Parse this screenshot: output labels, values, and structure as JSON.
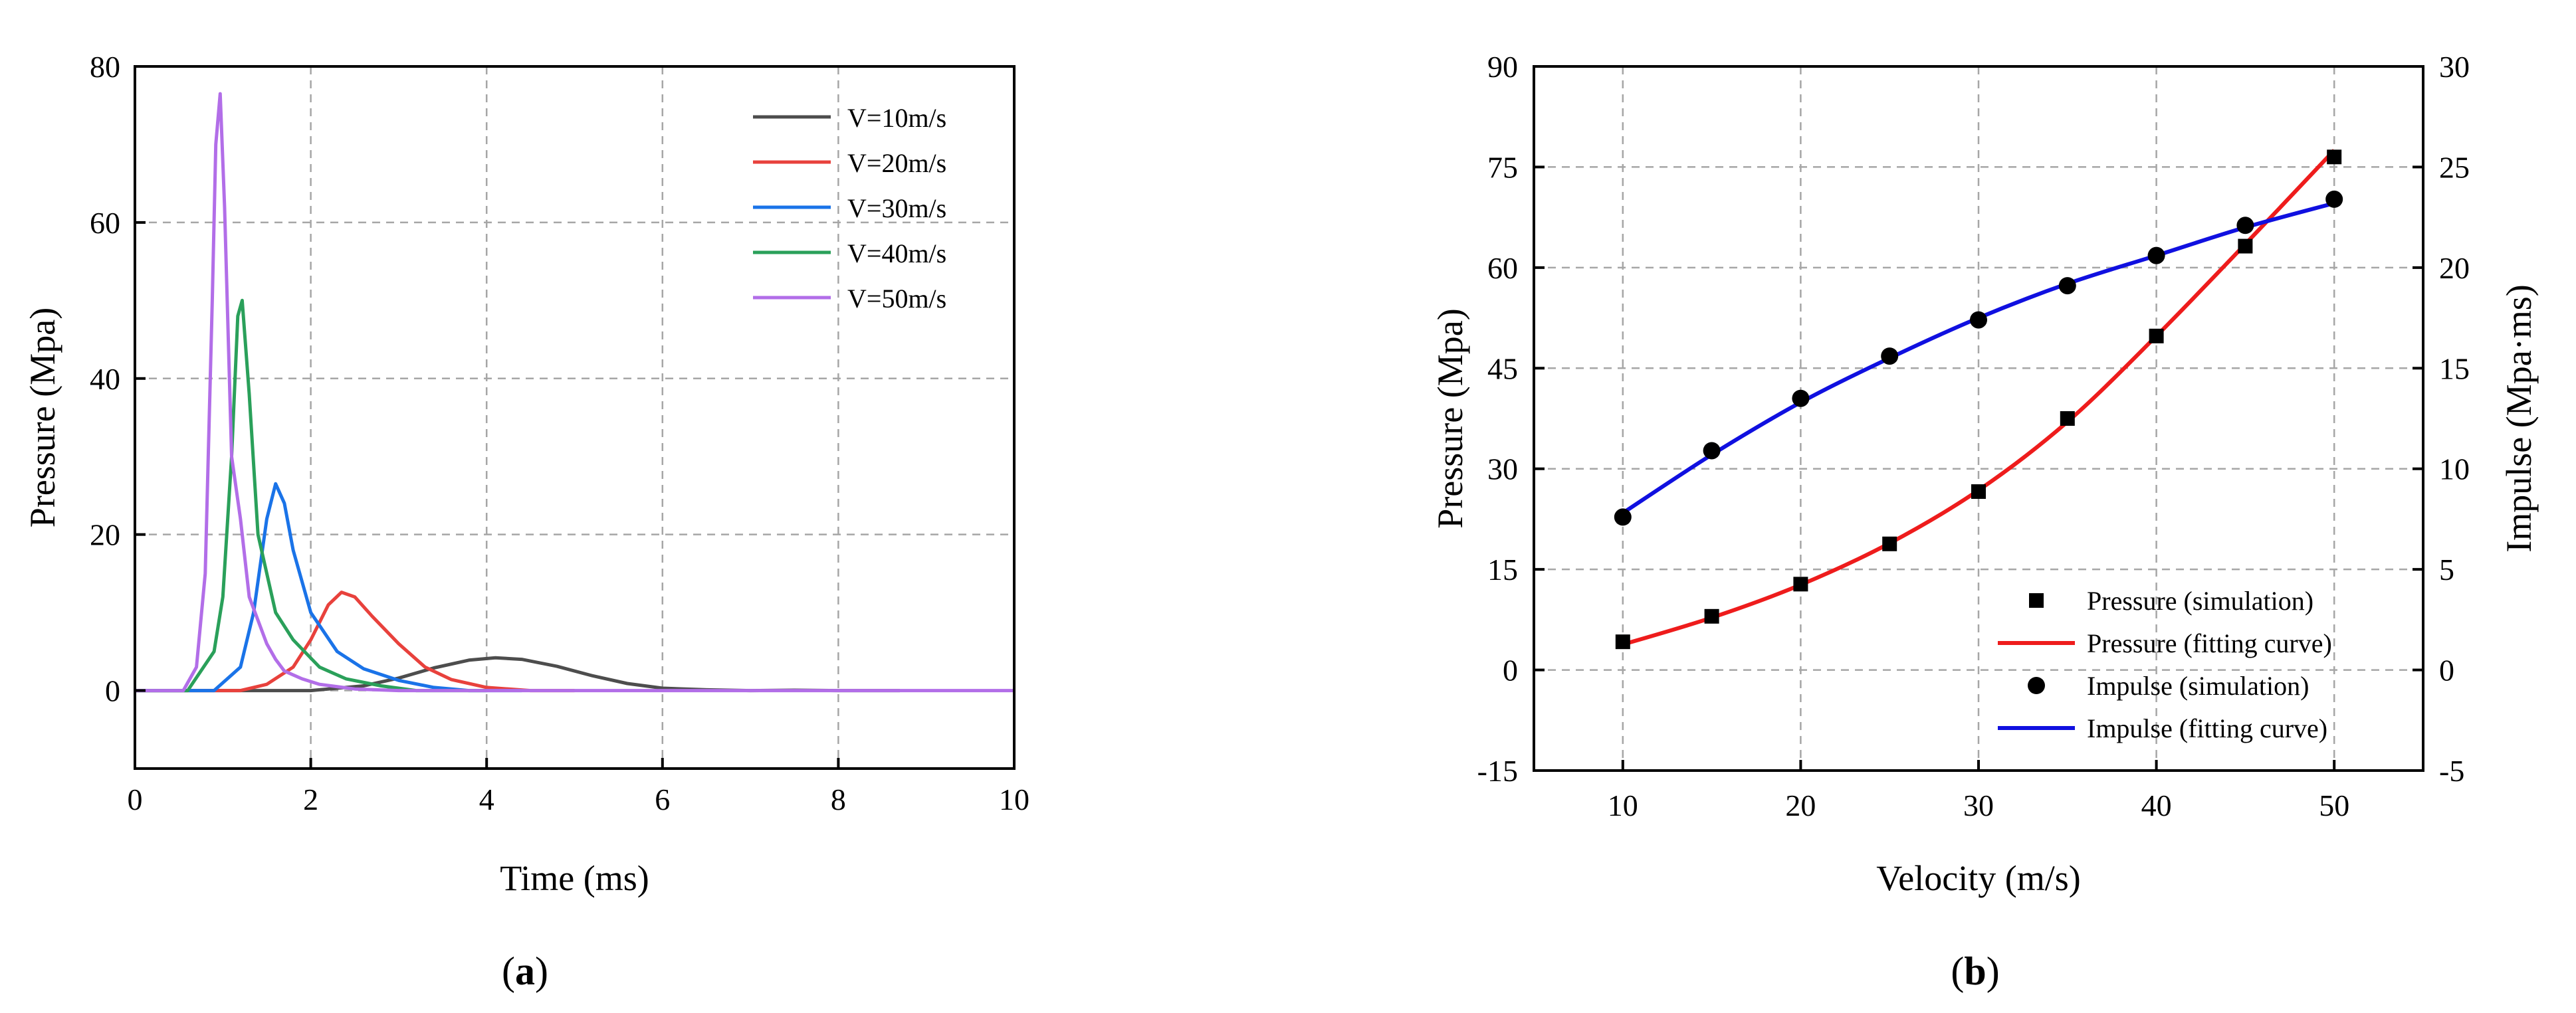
{
  "chart_data": [
    {
      "panel": "a",
      "caption_prefix": "(",
      "caption_letter": "a",
      "caption_suffix": ")",
      "type": "line",
      "xlabel": "Time (ms)",
      "ylabel": "Pressure (Mpa)",
      "xlim": [
        0,
        10
      ],
      "ylim": [
        -10,
        80
      ],
      "xticks": [
        0,
        2,
        4,
        6,
        8,
        10
      ],
      "yticks": [
        0,
        20,
        40,
        60,
        80
      ],
      "grid": true,
      "legend_position": "top-right",
      "series": [
        {
          "name": "V=10m/s",
          "color": "#4d4d4d",
          "x": [
            0,
            2.0,
            2.6,
            3.0,
            3.4,
            3.8,
            4.1,
            4.4,
            4.8,
            5.2,
            5.6,
            6.0,
            6.5,
            7.0,
            7.5,
            8.0,
            8.7
          ],
          "y": [
            0,
            0,
            0.6,
            1.6,
            2.9,
            3.9,
            4.2,
            4.0,
            3.1,
            1.9,
            0.9,
            0.3,
            0.1,
            0,
            0.05,
            0,
            0
          ]
        },
        {
          "name": "V=20m/s",
          "color": "#e8413c",
          "x": [
            0,
            1.2,
            1.5,
            1.8,
            2.0,
            2.2,
            2.35,
            2.5,
            2.7,
            3.0,
            3.3,
            3.6,
            4.0,
            4.5,
            5.0
          ],
          "y": [
            0,
            0,
            0.8,
            3.0,
            6.5,
            11.0,
            12.6,
            12.0,
            9.5,
            6.0,
            3.0,
            1.4,
            0.4,
            0,
            0
          ]
        },
        {
          "name": "V=30m/s",
          "color": "#1a73e8",
          "x": [
            0,
            0.9,
            1.2,
            1.35,
            1.5,
            1.6,
            1.7,
            1.8,
            2.0,
            2.3,
            2.6,
            3.0,
            3.4,
            3.8,
            4.4
          ],
          "y": [
            0,
            0,
            3.0,
            10.0,
            22.0,
            26.5,
            24.0,
            18.0,
            10.0,
            5.0,
            2.8,
            1.3,
            0.4,
            0,
            0
          ]
        },
        {
          "name": "V=40m/s",
          "color": "#2aa05a",
          "x": [
            0,
            0.6,
            0.9,
            1.0,
            1.1,
            1.17,
            1.22,
            1.3,
            1.4,
            1.6,
            1.8,
            2.1,
            2.4,
            2.8,
            3.2,
            4.0
          ],
          "y": [
            0,
            0,
            5.0,
            12.0,
            30.0,
            48.0,
            50.0,
            38.0,
            20.0,
            10.0,
            6.5,
            3.0,
            1.5,
            0.6,
            0,
            0
          ]
        },
        {
          "name": "V=50m/s",
          "color": "#b26ee8",
          "x": [
            0,
            0.55,
            0.7,
            0.8,
            0.88,
            0.92,
            0.97,
            1.02,
            1.1,
            1.2,
            1.3,
            1.4,
            1.5,
            1.6,
            1.7,
            1.9,
            2.1,
            2.5,
            3.0,
            10.0
          ],
          "y": [
            0,
            0,
            3.0,
            15.0,
            50.0,
            70.0,
            76.5,
            62.0,
            30.0,
            22.0,
            12.0,
            9.0,
            6.0,
            4.0,
            2.5,
            1.5,
            0.8,
            0.2,
            0,
            0
          ]
        }
      ]
    },
    {
      "panel": "b",
      "caption_prefix": "(",
      "caption_letter": "b",
      "caption_suffix": ")",
      "type": "scatter+line",
      "xlabel": "Velocity (m/s)",
      "ylabel_left": "Pressure (Mpa)",
      "ylabel_right": "Impulse (Mpa·ms)",
      "xlim": [
        5,
        55
      ],
      "ylim_left": [
        -15,
        90
      ],
      "ylim_right": [
        -5,
        30
      ],
      "xticks": [
        10,
        20,
        30,
        40,
        50
      ],
      "yticks_left": [
        -15,
        0,
        15,
        30,
        45,
        60,
        75,
        90
      ],
      "yticks_right": [
        -5,
        0,
        5,
        10,
        15,
        20,
        25,
        30
      ],
      "grid": true,
      "legend_position": "bottom-right",
      "x": [
        10,
        15,
        20,
        25,
        30,
        35,
        40,
        45,
        50
      ],
      "series": [
        {
          "name": "Pressure (simulation)",
          "marker": "square",
          "color": "#000000",
          "axis": "left",
          "y": [
            4.2,
            8.0,
            12.8,
            18.8,
            26.6,
            37.5,
            49.8,
            63.2,
            76.5
          ]
        },
        {
          "name": "Pressure (fitting curve)",
          "line": true,
          "color": "#ee1c1c",
          "axis": "left",
          "y": [
            3.8,
            7.8,
            12.7,
            18.9,
            26.8,
            37.0,
            49.8,
            63.5,
            77.5
          ]
        },
        {
          "name": "Impulse (simulation)",
          "marker": "circle",
          "color": "#000000",
          "axis": "right",
          "y": [
            7.6,
            10.9,
            13.5,
            15.6,
            17.4,
            19.1,
            20.6,
            22.1,
            23.4
          ]
        },
        {
          "name": "Impulse (fitting curve)",
          "line": true,
          "color": "#1010e0",
          "axis": "right",
          "y": [
            7.8,
            10.7,
            13.3,
            15.5,
            17.5,
            19.2,
            20.6,
            22.0,
            23.2
          ]
        }
      ]
    }
  ]
}
